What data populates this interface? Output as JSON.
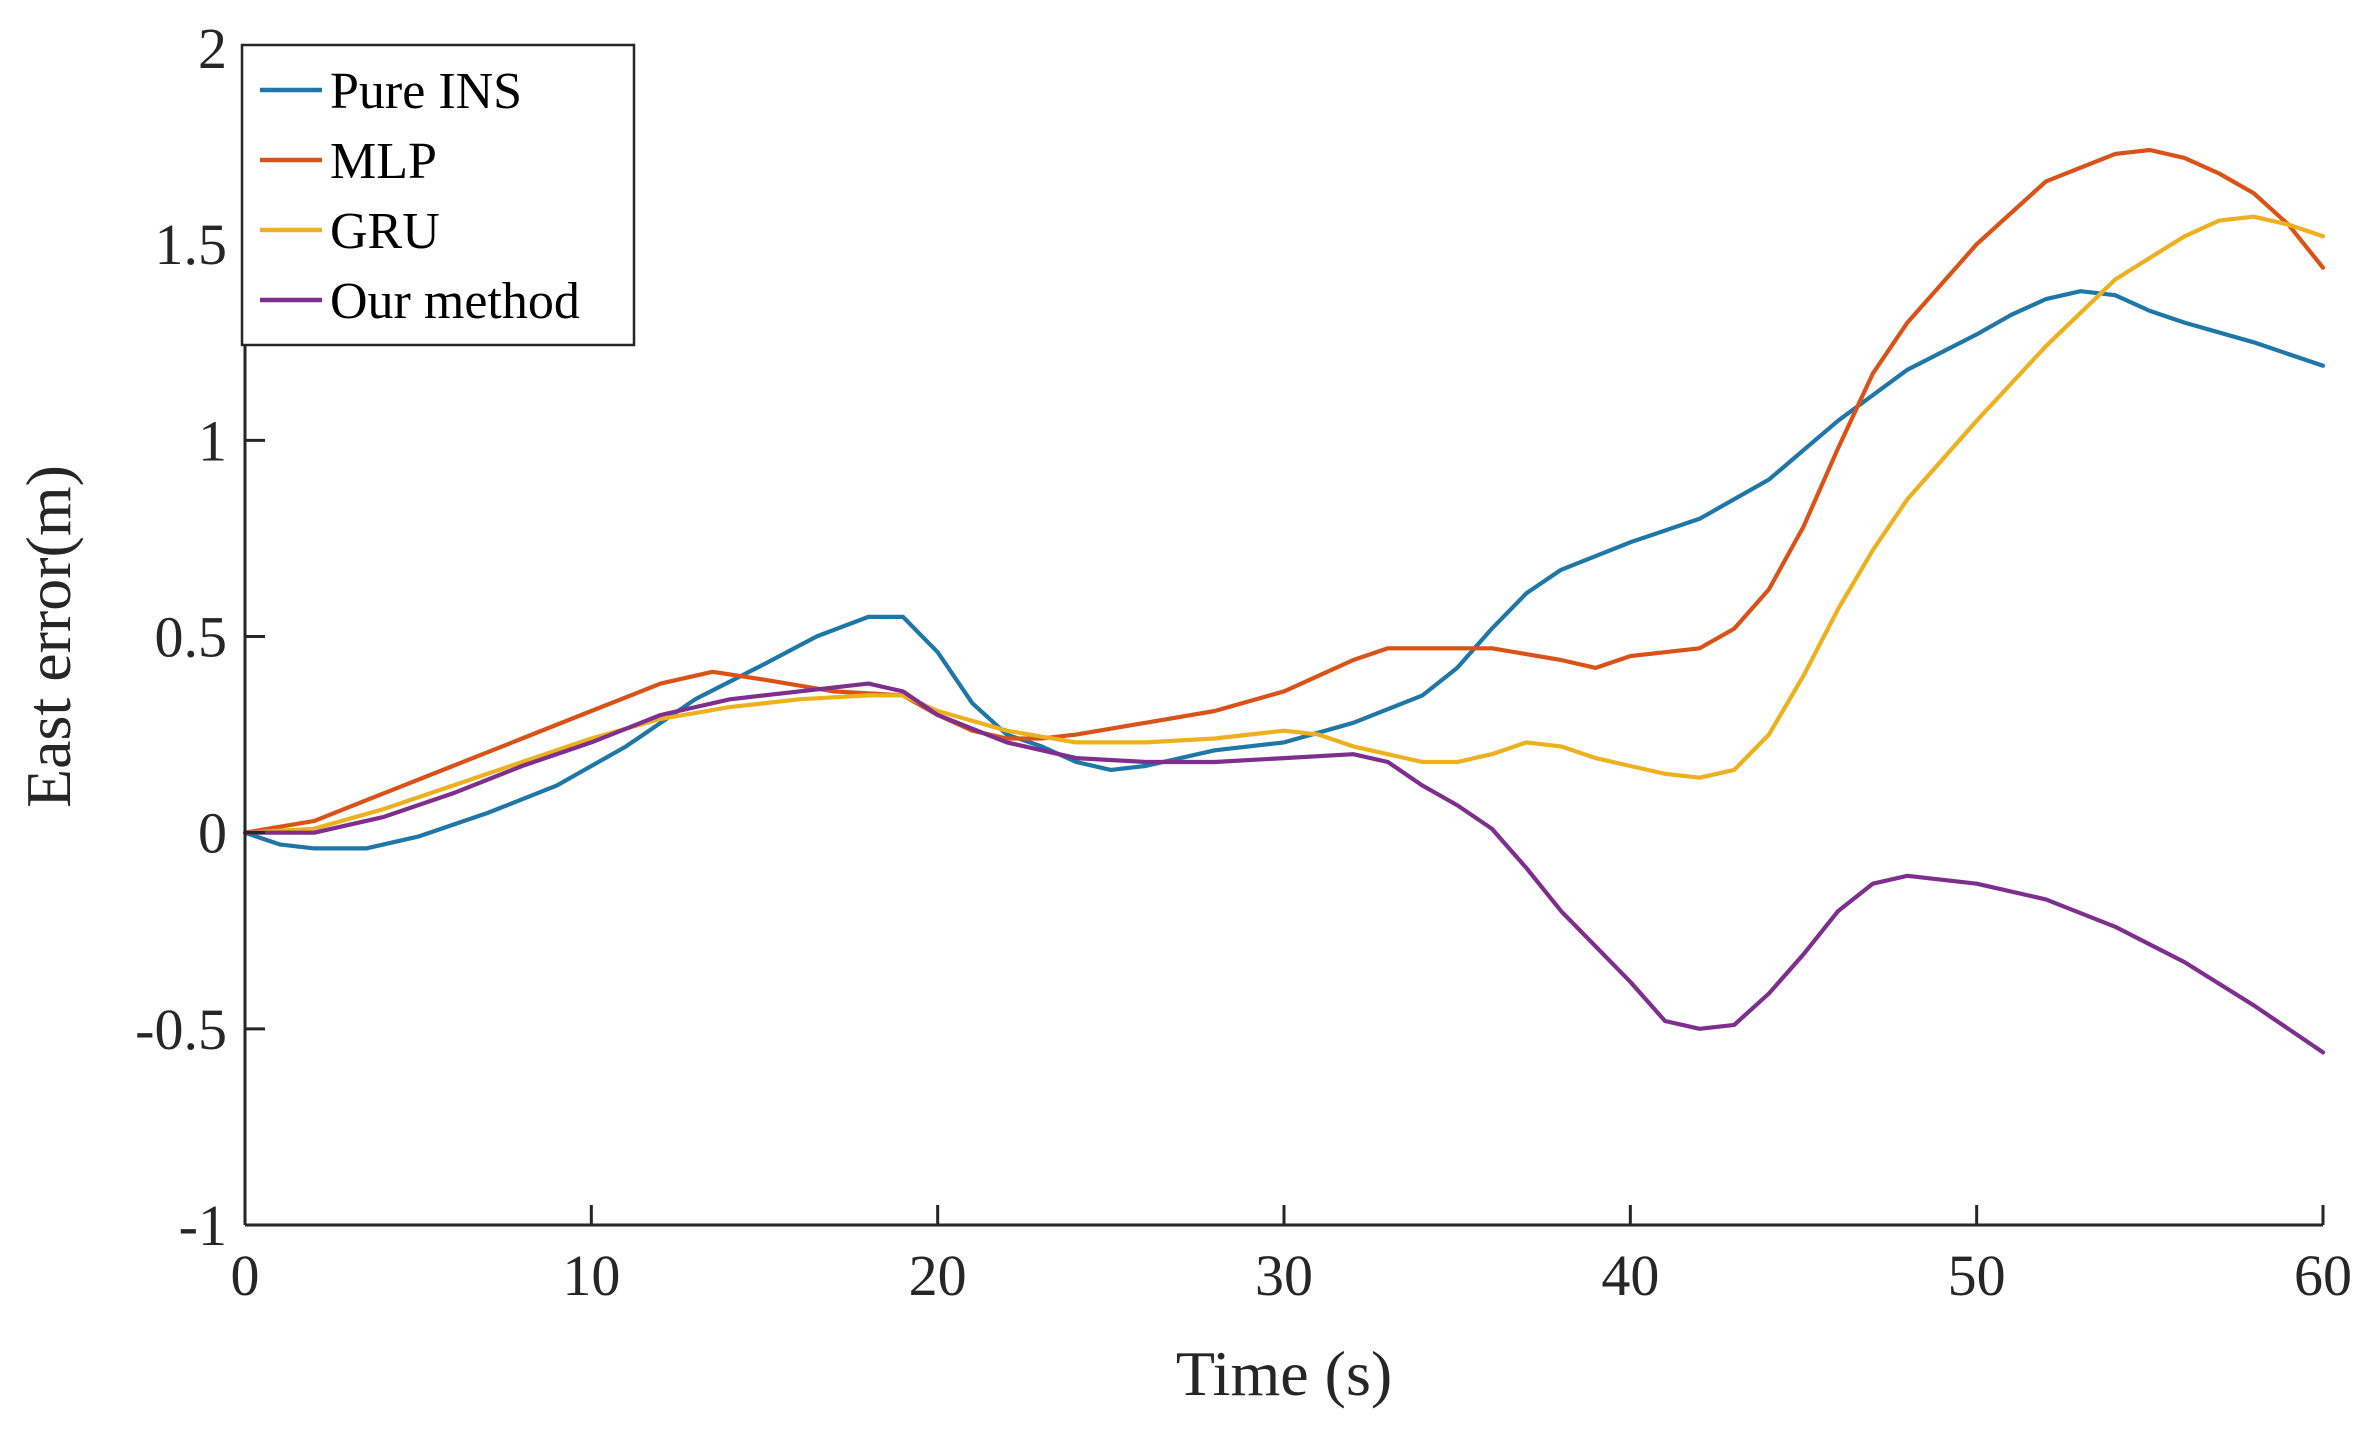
{
  "chart_data": {
    "type": "line",
    "title": "",
    "xlabel": "Time (s)",
    "ylabel": "East error(m)",
    "xlim": [
      0,
      60
    ],
    "ylim": [
      -1,
      2
    ],
    "xticks": [
      0,
      10,
      20,
      30,
      40,
      50,
      60
    ],
    "yticks": [
      -1,
      -0.5,
      0,
      0.5,
      1,
      1.5,
      2
    ],
    "xtick_labels": [
      "0",
      "10",
      "20",
      "30",
      "40",
      "50",
      "60"
    ],
    "ytick_labels": [
      "-1",
      "-0.5",
      "0",
      "0.5",
      "1",
      "1.5",
      "2"
    ],
    "grid": false,
    "legend_position": "top-left",
    "series": [
      {
        "name": "Pure INS",
        "color": "#1f77a8",
        "x": [
          0,
          1,
          2,
          3.5,
          5,
          7,
          9,
          11,
          13,
          15,
          16.5,
          18,
          19,
          20,
          21,
          22,
          23,
          24,
          25,
          26,
          28,
          30,
          32,
          34,
          35,
          36,
          37,
          38,
          40,
          42,
          44,
          46,
          48,
          50,
          51,
          52,
          53,
          54,
          55,
          56,
          58,
          60
        ],
        "y": [
          0,
          -0.03,
          -0.04,
          -0.04,
          -0.01,
          0.05,
          0.12,
          0.22,
          0.34,
          0.43,
          0.5,
          0.55,
          0.55,
          0.46,
          0.33,
          0.25,
          0.22,
          0.18,
          0.16,
          0.17,
          0.21,
          0.23,
          0.28,
          0.35,
          0.42,
          0.52,
          0.61,
          0.67,
          0.74,
          0.8,
          0.9,
          1.05,
          1.18,
          1.27,
          1.32,
          1.36,
          1.38,
          1.37,
          1.33,
          1.3,
          1.25,
          1.19
        ]
      },
      {
        "name": "MLP",
        "color": "#d95319",
        "x": [
          0,
          2,
          4,
          6,
          8,
          10,
          12,
          13.5,
          15,
          17,
          19,
          20,
          21,
          22,
          23,
          24,
          26,
          28,
          30,
          32,
          33,
          34,
          36,
          38,
          39,
          40,
          41,
          42,
          43,
          44,
          45,
          46,
          47,
          48,
          50,
          52,
          54,
          55,
          56,
          57,
          58,
          59,
          60
        ],
        "y": [
          0,
          0.03,
          0.1,
          0.17,
          0.24,
          0.31,
          0.38,
          0.41,
          0.39,
          0.36,
          0.35,
          0.3,
          0.26,
          0.24,
          0.24,
          0.25,
          0.28,
          0.31,
          0.36,
          0.44,
          0.47,
          0.47,
          0.47,
          0.44,
          0.42,
          0.45,
          0.46,
          0.47,
          0.52,
          0.62,
          0.78,
          0.98,
          1.17,
          1.3,
          1.5,
          1.66,
          1.73,
          1.74,
          1.72,
          1.68,
          1.63,
          1.55,
          1.44
        ]
      },
      {
        "name": "GRU",
        "color": "#edb120",
        "x": [
          0,
          2,
          4,
          6,
          8,
          10,
          12,
          14,
          16,
          18,
          19,
          20,
          22,
          24,
          26,
          28,
          30,
          31,
          32,
          33,
          34,
          35,
          36,
          37,
          38,
          39,
          40,
          41,
          42,
          43,
          44,
          45,
          46,
          47,
          48,
          50,
          52,
          54,
          56,
          57,
          58,
          59,
          60
        ],
        "y": [
          0,
          0.01,
          0.06,
          0.12,
          0.18,
          0.24,
          0.29,
          0.32,
          0.34,
          0.35,
          0.35,
          0.31,
          0.26,
          0.23,
          0.23,
          0.24,
          0.26,
          0.25,
          0.22,
          0.2,
          0.18,
          0.18,
          0.2,
          0.23,
          0.22,
          0.19,
          0.17,
          0.15,
          0.14,
          0.16,
          0.25,
          0.4,
          0.57,
          0.72,
          0.85,
          1.05,
          1.24,
          1.41,
          1.52,
          1.56,
          1.57,
          1.55,
          1.52
        ]
      },
      {
        "name": "Our method",
        "color": "#7e2f8e",
        "x": [
          0,
          2,
          4,
          6,
          8,
          10,
          12,
          14,
          16,
          18,
          19,
          20,
          22,
          24,
          26,
          28,
          30,
          32,
          33,
          34,
          35,
          36,
          37,
          38,
          40,
          41,
          42,
          43,
          44,
          45,
          46,
          47,
          48,
          50,
          52,
          54,
          56,
          58,
          60
        ],
        "y": [
          0,
          0,
          0.04,
          0.1,
          0.17,
          0.23,
          0.3,
          0.34,
          0.36,
          0.38,
          0.36,
          0.3,
          0.23,
          0.19,
          0.18,
          0.18,
          0.19,
          0.2,
          0.18,
          0.12,
          0.07,
          0.01,
          -0.09,
          -0.2,
          -0.38,
          -0.48,
          -0.5,
          -0.49,
          -0.41,
          -0.31,
          -0.2,
          -0.13,
          -0.11,
          -0.13,
          -0.17,
          -0.24,
          -0.33,
          -0.44,
          -0.56
        ]
      }
    ]
  }
}
